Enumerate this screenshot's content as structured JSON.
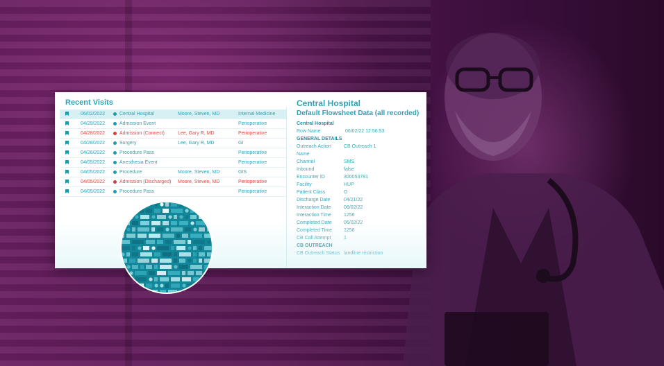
{
  "visits": {
    "title": "Recent Visits",
    "rows": [
      {
        "date": "06/02/2022",
        "dept": "Central Hospital",
        "provider": "Moore, Steven, MD",
        "service": "Internal Medicine",
        "alert": false,
        "selected": true
      },
      {
        "date": "04/29/2022",
        "dept": "Admission Event",
        "provider": "",
        "service": "Perioperative",
        "alert": false,
        "selected": false
      },
      {
        "date": "04/28/2022",
        "dept": "Admission (Connect)",
        "provider": "Lee, Gary R, MD",
        "service": "Perioperative",
        "alert": true,
        "selected": false
      },
      {
        "date": "04/28/2022",
        "dept": "Surgery",
        "provider": "Lee, Gary R, MD",
        "service": "GI",
        "alert": false,
        "selected": false
      },
      {
        "date": "04/26/2022",
        "dept": "Procedure Pass",
        "provider": "",
        "service": "Perioperative",
        "alert": false,
        "selected": false
      },
      {
        "date": "04/05/2022",
        "dept": "Anesthesia Event",
        "provider": "",
        "service": "Perioperative",
        "alert": false,
        "selected": false
      },
      {
        "date": "04/05/2022",
        "dept": "Procedure",
        "provider": "Moore, Steven, MD",
        "service": "GIS",
        "alert": false,
        "selected": false
      },
      {
        "date": "04/05/2022",
        "dept": "Admission (Discharged)",
        "provider": "Moore, Steven, MD",
        "service": "Perioperative",
        "alert": true,
        "selected": false
      },
      {
        "date": "04/05/2022",
        "dept": "Procedure Pass",
        "provider": "",
        "service": "Perioperative",
        "alert": false,
        "selected": false
      }
    ]
  },
  "detail": {
    "title": "Central Hospital",
    "subtitle": "Default Flowsheet Data (all recorded)",
    "header": "Central Hospital",
    "row_name_label": "Row Name",
    "row_name_value": "06/02/22 12:56:53",
    "sections": [
      {
        "title": "GENERAL DETAILS",
        "fields": [
          {
            "label": "Outreach Action Name",
            "value": "CB Outreach 1"
          },
          {
            "label": "Channel",
            "value": "SMS"
          },
          {
            "label": "Inbound",
            "value": "false"
          },
          {
            "label": "Encounter ID",
            "value": "300053781"
          },
          {
            "label": "Facility",
            "value": "HUP"
          },
          {
            "label": "Patient Class",
            "value": "O"
          },
          {
            "label": "Discharge Date",
            "value": "04/21/22"
          },
          {
            "label": "Interaction Date",
            "value": "06/02/22"
          },
          {
            "label": "Interaction Time",
            "value": "1256"
          },
          {
            "label": "Completed Date",
            "value": "06/02/22"
          },
          {
            "label": "Completed Time",
            "value": "1256"
          },
          {
            "label": "CB Call Attempt",
            "value": "1"
          }
        ]
      },
      {
        "title": "CB OUTREACH",
        "fields": [
          {
            "label": "CB Outreach Status",
            "value": "landline restriction"
          }
        ]
      }
    ]
  },
  "colors": {
    "accent": "#2ea3b4",
    "alert": "#e24a4a",
    "selected_row": "#d7f0f4",
    "background": "#5a1a54"
  }
}
